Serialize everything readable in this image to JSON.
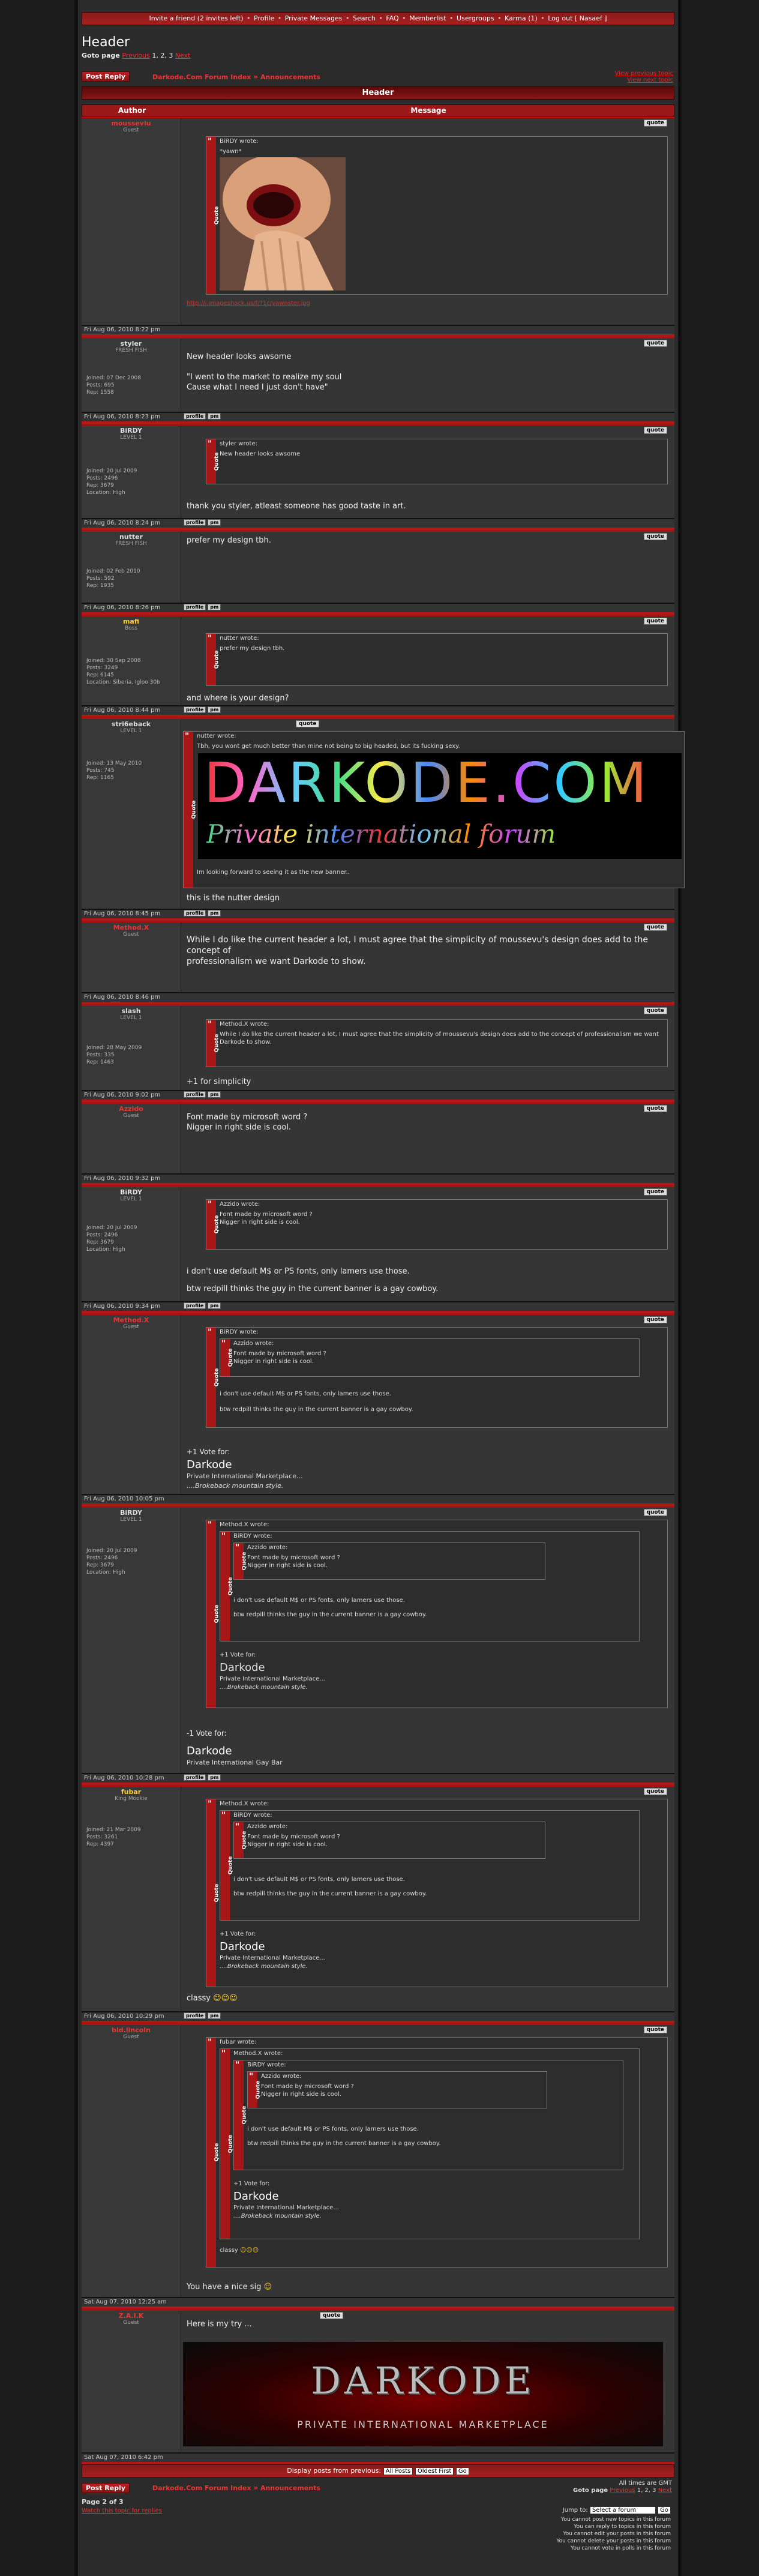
{
  "nav": {
    "items": [
      "Invite a friend (2 invites left)",
      "Profile",
      "Private Messages",
      "Search",
      "FAQ",
      "Memberlist",
      "Usergroups",
      "Karma (1)",
      "Log out [ Nasaef ]"
    ]
  },
  "topic": {
    "title": "Header",
    "goto_label": "Goto page",
    "goto_prev": "Previous",
    "goto_pages": "1, 2, 3",
    "goto_next": "Next",
    "post_reply": "Post Reply",
    "breadcrumb_index": "Darkode.Com Forum Index",
    "breadcrumb_sep": "»",
    "breadcrumb_forum": "Announcements",
    "view_prev": "View previous topic",
    "view_next": "View next topic",
    "col_author": "Author",
    "col_message": "Message"
  },
  "posts": [
    {
      "author": "mousseviu",
      "rank": "Guest",
      "stats": [],
      "date": "Fri Aug 06, 2010 8:22 pm",
      "quote_author": "BiRDY wrote:",
      "quote_text": "*yawn*",
      "link": "http://i.imageshack.us/f/?1c/yawnster.jpg",
      "quote_btn": "quote"
    },
    {
      "author": "styler",
      "rank": "FRESH FISH",
      "stats": [
        "Joined: 07 Dec 2008",
        "Posts: 695",
        "Rep: 1558"
      ],
      "date": "Fri Aug 06, 2010 8:23 pm",
      "body": [
        "New header looks awsome",
        "",
        "\"I went to the market to realize my soul",
        "Cause what I need I just don't have\""
      ],
      "quote_btn": "quote"
    },
    {
      "author": "BiRDY",
      "rank": "LEVEL 1",
      "stats": [
        "Joined: 20 Jul 2009",
        "Posts: 2496",
        "Rep: 3679",
        "Location: High"
      ],
      "date": "Fri Aug 06, 2010 8:24 pm",
      "quote_author": "styler wrote:",
      "quote_text": "New header looks awsome",
      "body": [
        "thank you styler, atleast someone has good taste in art."
      ],
      "quote_btn": "quote"
    },
    {
      "author": "nutter",
      "rank": "FRESH FISH",
      "stats": [
        "Joined: 02 Feb 2010",
        "Posts: 592",
        "Rep: 1935"
      ],
      "date": "Fri Aug 06, 2010 8:26 pm",
      "body": [
        "prefer my design tbh."
      ],
      "quote_btn": "quote"
    },
    {
      "author": "mafi",
      "rank": "Boss",
      "stats": [
        "Joined: 30 Sep 2008",
        "Posts: 3249",
        "Rep: 6145",
        "Location: Siberia, Igloo 30b"
      ],
      "date": "Fri Aug 06, 2010 8:44 pm",
      "quote_author": "nutter wrote:",
      "quote_text": "prefer my design tbh.",
      "body": [
        "and where is your design?"
      ],
      "quote_btn": "quote"
    },
    {
      "author": "stri6eback",
      "rank": "LEVEL 1",
      "stats": [
        "Joined: 13 May 2010",
        "Posts: 745",
        "Rep: 1165"
      ],
      "date": "Fri Aug 06, 2010 8:45 pm",
      "quote_author": "nutter wrote:",
      "quote_text": "Tbh, you wont get much better than mine not being to big headed, but its fucking sexy.",
      "banner_line1": "DARKODE.COM",
      "banner_line2": "Private international forum",
      "quote_text2": "Im looking forward to seeing it as the new banner..",
      "body": [
        "this is the nutter design"
      ],
      "quote_btn": "quote"
    },
    {
      "author": "Method.X",
      "rank": "Guest",
      "stats": [],
      "date": "Fri Aug 06, 2010 8:46 pm",
      "body": [
        "While I do like the current header a lot, I must agree that the simplicity of moussevu's design does add to the concept of",
        "professionalism we want Darkode to show."
      ],
      "quote_btn": "quote"
    },
    {
      "author": "slash",
      "rank": "LEVEL 1",
      "stats": [
        "Joined: 28 May 2009",
        "Posts: 335",
        "Rep: 1463"
      ],
      "date": "Fri Aug 06, 2010 9:02 pm",
      "quote_author": "Method.X wrote:",
      "quote_text": "While I do like the current header a lot, I must agree that the simplicity of moussevu's design does add to the concept of professionalism we want Darkode to show.",
      "body": [
        "+1 for simplicity"
      ],
      "quote_btn": "quote"
    },
    {
      "author": "Azzido",
      "rank": "Guest",
      "stats": [],
      "date": "Fri Aug 06, 2010 9:32 pm",
      "body": [
        "Font made by microsoft word ?",
        "Nigger in right side is cool."
      ],
      "quote_btn": "quote"
    },
    {
      "author": "BiRDY",
      "rank": "LEVEL 1",
      "stats": [
        "Joined: 20 Jul 2009",
        "Posts: 2496",
        "Rep: 3679",
        "Location: High"
      ],
      "date": "Fri Aug 06, 2010 9:34 pm",
      "quote_author": "Azzido wrote:",
      "quote_text": "Font made by microsoft word ? Nigger in right side is cool.",
      "body": [
        "i don't use default M$ or PS fonts, only lamers use those.",
        "",
        "btw redpill thinks the guy in the current banner is a gay cowboy."
      ],
      "quote_btn": "quote"
    },
    {
      "author": "Method.X",
      "rank": "Guest",
      "stats": [],
      "date": "Fri Aug 06, 2010 10:05 pm",
      "quote_author": "BiRDY wrote:",
      "nested_author": "Azzido wrote:",
      "nested_text": "Font made by microsoft word ? Nigger in right side is cool.",
      "quote_text": "i don't use default M$ or PS fonts, only lamers use those.",
      "quote_text2": "btw redpill thinks the guy in the current banner is a gay cowboy.",
      "body": [
        "+1 Vote for:"
      ],
      "big": "Darkode",
      "sig1": "Private International Marketplace...",
      "sig2": "....Brokeback mountain style.",
      "quote_btn": "quote"
    },
    {
      "author": "BiRDY",
      "rank": "LEVEL 1",
      "stats": [
        "Joined: 20 Jul 2009",
        "Posts: 2496",
        "Rep: 3679",
        "Location: High"
      ],
      "date": "Fri Aug 06, 2010 10:28 pm",
      "quote_author": "Method.X wrote:",
      "nested_author": "BiRDY wrote:",
      "deep_author": "Azzido wrote:",
      "deep_text": "Font made by microsoft word ? Nigger in right side is cool.",
      "nested_text": "i don't use default M$ or PS fonts, only lamers use those.",
      "nested_text2": "btw redpill thinks the guy in the current banner is a gay cowboy.",
      "quote_text": "+1 Vote for:",
      "big_q": "Darkode",
      "sig1": "Private International Marketplace...",
      "sig2": "....Brokeback mountain style.",
      "body": [
        "-1 Vote for:"
      ],
      "big": "Darkode",
      "sig3": "Private International Gay Bar",
      "quote_btn": "quote"
    },
    {
      "author": "fubar",
      "rank": "King Mookie",
      "stats": [
        "Joined: 21 Mar 2009",
        "Posts: 3261",
        "Rep: 4397"
      ],
      "date": "Fri Aug 06, 2010 10:29 pm",
      "quote_author": "Method.X wrote:",
      "nested_author": "BiRDY wrote:",
      "deep_author": "Azzido wrote:",
      "deep_text": "Font made by microsoft word ? Nigger in right side is cool.",
      "nested_text": "i don't use default M$ or PS fonts, only lamers use those.",
      "nested_text2": "btw redpill thinks the guy in the current banner is a gay cowboy.",
      "quote_text": "+1 Vote for:",
      "big_q": "Darkode",
      "sig1": "Private International Marketplace...",
      "sig2": "....Brokeback mountain style.",
      "body": [
        "classy"
      ],
      "quote_btn": "quote"
    },
    {
      "author": "bld.lincoln",
      "rank": "Guest",
      "stats": [],
      "date": "Sat Aug 07, 2010 12:25 am",
      "quote_author": "fubar wrote:",
      "nested_author": "Method.X wrote:",
      "deep_author": "BiRDY wrote:",
      "deepest_author": "Azzido wrote:",
      "deepest_text": "Font made by microsoft word ? Nigger in right side is cool.",
      "deep_text": "i don't use default M$ or PS fonts, only lamers use those.",
      "deep_text2": "btw redpill thinks the guy in the current banner is a gay cowboy.",
      "nested_text": "+1 Vote for:",
      "big_q": "Darkode",
      "sig1": "Private International Marketplace...",
      "sig2": "....Brokeback mountain style.",
      "quote_text": "classy",
      "body": [
        "You have a nice sig"
      ],
      "quote_btn": "quote"
    },
    {
      "author": "Z.A.I.K",
      "rank": "Guest",
      "stats": [],
      "date": "Sat Aug 07, 2010 6:42 pm",
      "body": [
        "Here is my try ..."
      ],
      "banner_title": "DARKODE",
      "banner_sub": "PRIVATE INTERNATIONAL MARKETPLACE",
      "quote_btn": "quote"
    }
  ],
  "pm_labels": {
    "profile": "profile",
    "pm": "pm"
  },
  "bottom": {
    "display_label": "Display posts from previous:",
    "all_posts": "All Posts",
    "oldest": "Oldest First",
    "go": "Go",
    "times": "All times are GMT",
    "page_of": "Page 2 of 3",
    "watch": "Watch this topic for replies",
    "jump_label": "Jump to:",
    "jump_value": "Select a forum",
    "perms": [
      "You cannot post new topics in this forum",
      "You can reply to topics in this forum",
      "You cannot edit your posts in this forum",
      "You cannot delete your posts in this forum",
      "You cannot vote in polls in this forum"
    ]
  },
  "colors": {
    "accent": "#a81f1f",
    "bg": "#2b2b2b"
  }
}
